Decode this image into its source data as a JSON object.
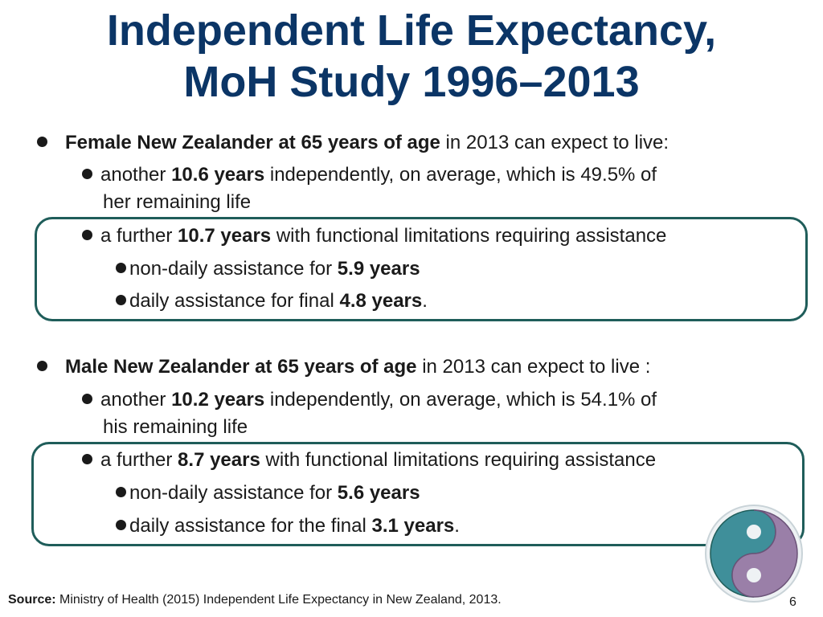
{
  "title": {
    "line1": "Independent Life Expectancy,",
    "line2": "MoH Study 1996–2013"
  },
  "female": {
    "lead_bold": "Female New Zealander at 65 years of age",
    "lead_rest": " in 2013 can expect to live:",
    "independent": {
      "pre": "another ",
      "bold": "10.6 years",
      "post": " independently, on average, which is 49.5% of",
      "cont": "her remaining life"
    },
    "assisted": {
      "pre": "a further ",
      "bold": "10.7 years",
      "post": " with functional limitations requiring assistance"
    },
    "non_daily": {
      "pre": "non-daily assistance for ",
      "bold": "5.9 years",
      "post": ""
    },
    "daily": {
      "pre": "daily assistance for final ",
      "bold": "4.8 years",
      "post": "."
    }
  },
  "male": {
    "lead_bold": "Male New Zealander at 65 years of age",
    "lead_rest": " in 2013 can expect to live :",
    "independent": {
      "pre": "another ",
      "bold": "10.2 years",
      "post": " independently, on average, which is 54.1% of",
      "cont": "his remaining life"
    },
    "assisted": {
      "pre": "a further ",
      "bold": "8.7 years",
      "post": " with functional limitations requiring assistance"
    },
    "non_daily": {
      "pre": "non-daily assistance for ",
      "bold": "5.6 years",
      "post": ""
    },
    "daily": {
      "pre": "daily assistance for the final ",
      "bold": "3.1 years",
      "post": "."
    }
  },
  "footer": {
    "source_label": "Source:",
    "source_text": " Ministry of Health (2015) Independent Life Expectancy in New Zealand, 2013.",
    "page_number": "6"
  },
  "colors": {
    "title": "#0b3566",
    "box_border": "#1f5d5a",
    "logo_teal": "#3f8f9a",
    "logo_purple": "#9a7fa8"
  },
  "logo": {
    "icon": "koru-logo-icon"
  }
}
